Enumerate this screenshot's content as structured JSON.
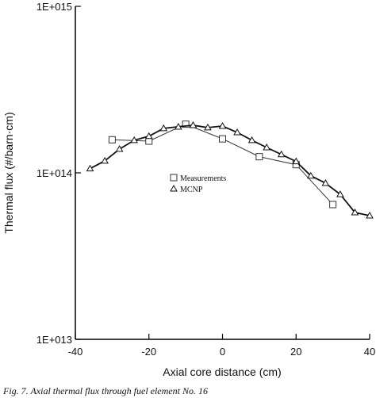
{
  "chart_data": {
    "type": "line",
    "x_label": "Axial core distance (cm)",
    "y_label": "Thermal flux (#/barn·cm)",
    "caption": "Fig. 7. Axial thermal flux through fuel element No. 16",
    "xlim": [
      -40,
      40
    ],
    "xticks": [
      -40,
      -20,
      0,
      20,
      40
    ],
    "ylim": [
      10000000000000.0,
      1000000000000000.0
    ],
    "yscale": "log",
    "yticks": [
      {
        "value": 10000000000000.0,
        "label": "1E+013"
      },
      {
        "value": 100000000000000.0,
        "label": "1E+014"
      },
      {
        "value": 1000000000000000.0,
        "label": "1E+015"
      }
    ],
    "series": [
      {
        "name": "Measurements",
        "color": "#333333",
        "marker": "square",
        "x": [
          -30,
          -20,
          -10,
          0,
          10,
          20,
          30
        ],
        "values": [
          158000000000000.0,
          155000000000000.0,
          196000000000000.0,
          160000000000000.0,
          125000000000000.0,
          112000000000000.0,
          64500000000000.0
        ]
      },
      {
        "name": "MCNP",
        "color": "#111111",
        "marker": "triangle",
        "x": [
          -36,
          -32,
          -28,
          -24,
          -20,
          -16,
          -12,
          -8,
          -4,
          0,
          4,
          8,
          12,
          16,
          20,
          24,
          28,
          32,
          36,
          40
        ],
        "values": [
          106000000000000.0,
          118000000000000.0,
          139000000000000.0,
          157000000000000.0,
          166000000000000.0,
          185000000000000.0,
          189000000000000.0,
          193000000000000.0,
          187000000000000.0,
          191000000000000.0,
          175000000000000.0,
          157000000000000.0,
          142000000000000.0,
          129000000000000.0,
          117000000000000.0,
          96000000000000.0,
          86700000000000.0,
          74300000000000.0,
          57800000000000.0,
          55300000000000.0
        ]
      }
    ]
  }
}
